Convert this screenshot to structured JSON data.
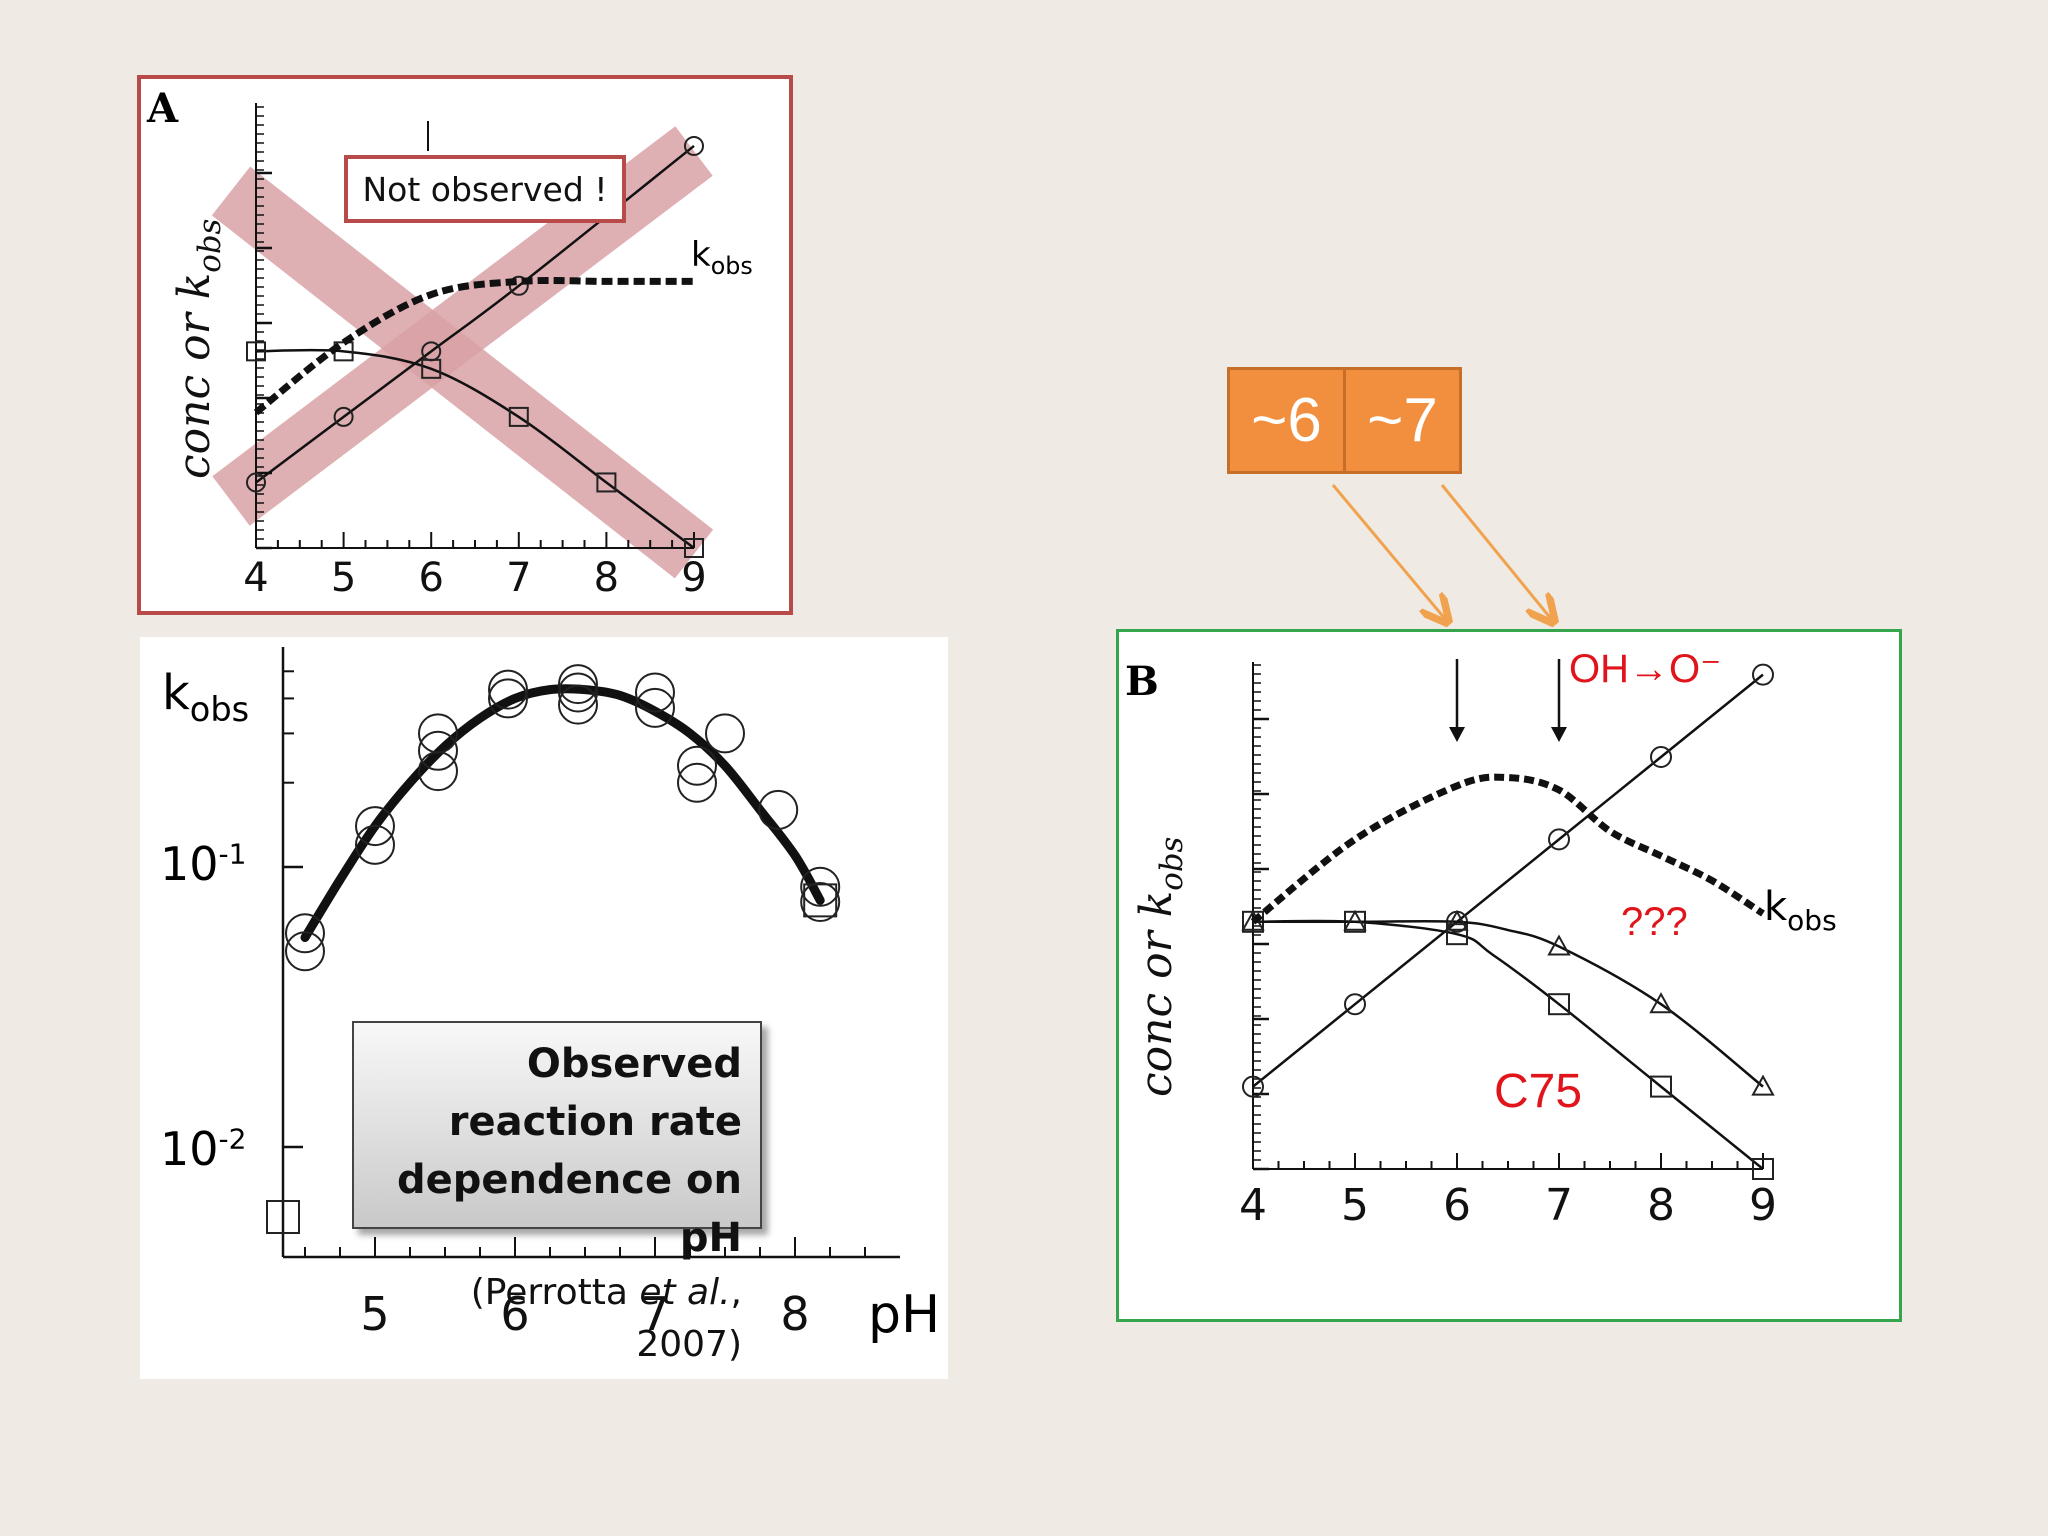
{
  "panel_a": {
    "letter": "A",
    "ylabel_main": "conc or k",
    "ylabel_sub": "obs",
    "series_label_main": "k",
    "series_label_sub": "obs",
    "annotation": "Not observed !",
    "cross_color": "#d9a2a6",
    "border_color": "#b84a4a",
    "x_ticks": [
      "4",
      "5",
      "6",
      "7",
      "8",
      "9"
    ]
  },
  "panel_c": {
    "ylabel_main": "k",
    "ylabel_sub": "obs",
    "xlabel": "pH",
    "y_ticks": [
      {
        "base": "10",
        "exp": "-1"
      },
      {
        "base": "10",
        "exp": "-2"
      }
    ],
    "x_ticks": [
      "5",
      "6",
      "7",
      "8"
    ],
    "caption_line1": "Observed reaction rate",
    "caption_line2": "dependence on pH",
    "caption_pre": "(Perrotta ",
    "caption_italic": "et al.",
    "caption_post": ", 2007)"
  },
  "panel_b": {
    "letter": "B",
    "ylabel_main": "conc or k",
    "ylabel_sub": "obs",
    "series_label_main": "k",
    "series_label_sub": "obs",
    "annotation_oh": "OH→O⁻",
    "annotation_q": "???",
    "annotation_c75": "C75",
    "border_color": "#35a54e",
    "x_ticks": [
      "4",
      "5",
      "6",
      "7",
      "8",
      "9"
    ]
  },
  "pka_box": {
    "left": "~6",
    "right": "~7",
    "color": "#f28f3e"
  },
  "chart_data": [
    {
      "type": "line",
      "panel": "A",
      "x_name": "pH",
      "xlim": [
        4,
        9
      ],
      "series": [
        {
          "marker": "circle",
          "x": [
            4,
            5,
            6,
            7,
            9
          ],
          "y": [
            0.15,
            0.3,
            0.45,
            0.6,
            0.92
          ]
        },
        {
          "marker": "square",
          "x": [
            4,
            5,
            6,
            7,
            8,
            9
          ],
          "y": [
            0.45,
            0.45,
            0.41,
            0.3,
            0.15,
            0.0
          ]
        },
        {
          "name": "kobs",
          "style": "dashed",
          "x": [
            4,
            5,
            6,
            7,
            8,
            9
          ],
          "y": [
            0.31,
            0.47,
            0.58,
            0.61,
            0.61,
            0.61
          ]
        }
      ]
    },
    {
      "type": "scatter",
      "panel": "kobs vs pH",
      "x_name": "pH",
      "y_scale": "log",
      "xlim": [
        4.5,
        8.5
      ],
      "points": [
        {
          "x": 4.5,
          "y": 0.058
        },
        {
          "x": 4.5,
          "y": 0.05
        },
        {
          "x": 5.0,
          "y": 0.12
        },
        {
          "x": 5.0,
          "y": 0.14
        },
        {
          "x": 5.45,
          "y": 0.22
        },
        {
          "x": 5.45,
          "y": 0.26
        },
        {
          "x": 5.45,
          "y": 0.3
        },
        {
          "x": 5.95,
          "y": 0.4
        },
        {
          "x": 5.95,
          "y": 0.43
        },
        {
          "x": 6.45,
          "y": 0.38
        },
        {
          "x": 6.45,
          "y": 0.42
        },
        {
          "x": 6.45,
          "y": 0.45
        },
        {
          "x": 7.0,
          "y": 0.37
        },
        {
          "x": 7.0,
          "y": 0.42
        },
        {
          "x": 7.3,
          "y": 0.2
        },
        {
          "x": 7.3,
          "y": 0.23
        },
        {
          "x": 7.5,
          "y": 0.3
        },
        {
          "x": 7.88,
          "y": 0.16
        },
        {
          "x": 8.18,
          "y": 0.075
        },
        {
          "x": 8.18,
          "y": 0.085
        }
      ],
      "fit_curve": {
        "x": [
          4.5,
          4.75,
          5.0,
          5.25,
          5.5,
          5.75,
          6.0,
          6.25,
          6.5,
          6.75,
          7.0,
          7.25,
          7.5,
          7.75,
          8.0,
          8.18
        ],
        "y": [
          0.056,
          0.09,
          0.14,
          0.2,
          0.27,
          0.34,
          0.4,
          0.43,
          0.43,
          0.41,
          0.36,
          0.3,
          0.23,
          0.16,
          0.11,
          0.076
        ]
      }
    },
    {
      "type": "line",
      "panel": "B",
      "x_name": "pH",
      "xlim": [
        4,
        9
      ],
      "series": [
        {
          "marker": "circle",
          "x": [
            4,
            5,
            6,
            7,
            8,
            9
          ],
          "y": [
            0.2,
            0.4,
            0.6,
            0.8,
            1.0,
            1.2
          ]
        },
        {
          "marker": "square",
          "x": [
            4,
            5,
            6,
            6.35,
            7,
            8,
            9
          ],
          "y": [
            0.6,
            0.6,
            0.57,
            0.52,
            0.4,
            0.2,
            0.0
          ]
        },
        {
          "marker": "triangle",
          "x": [
            4,
            5,
            6,
            6.5,
            7,
            8,
            9
          ],
          "y": [
            0.6,
            0.6,
            0.6,
            0.58,
            0.54,
            0.4,
            0.2
          ]
        },
        {
          "name": "kobs",
          "style": "dashed",
          "x": [
            4,
            5,
            6,
            6.5,
            7,
            7.5,
            8,
            8.5,
            9
          ],
          "y": [
            0.6,
            0.8,
            0.93,
            0.95,
            0.92,
            0.82,
            0.76,
            0.7,
            0.62
          ]
        }
      ],
      "markers": [
        {
          "x": 6,
          "type": "arrow"
        },
        {
          "x": 7,
          "type": "arrow"
        }
      ]
    }
  ]
}
